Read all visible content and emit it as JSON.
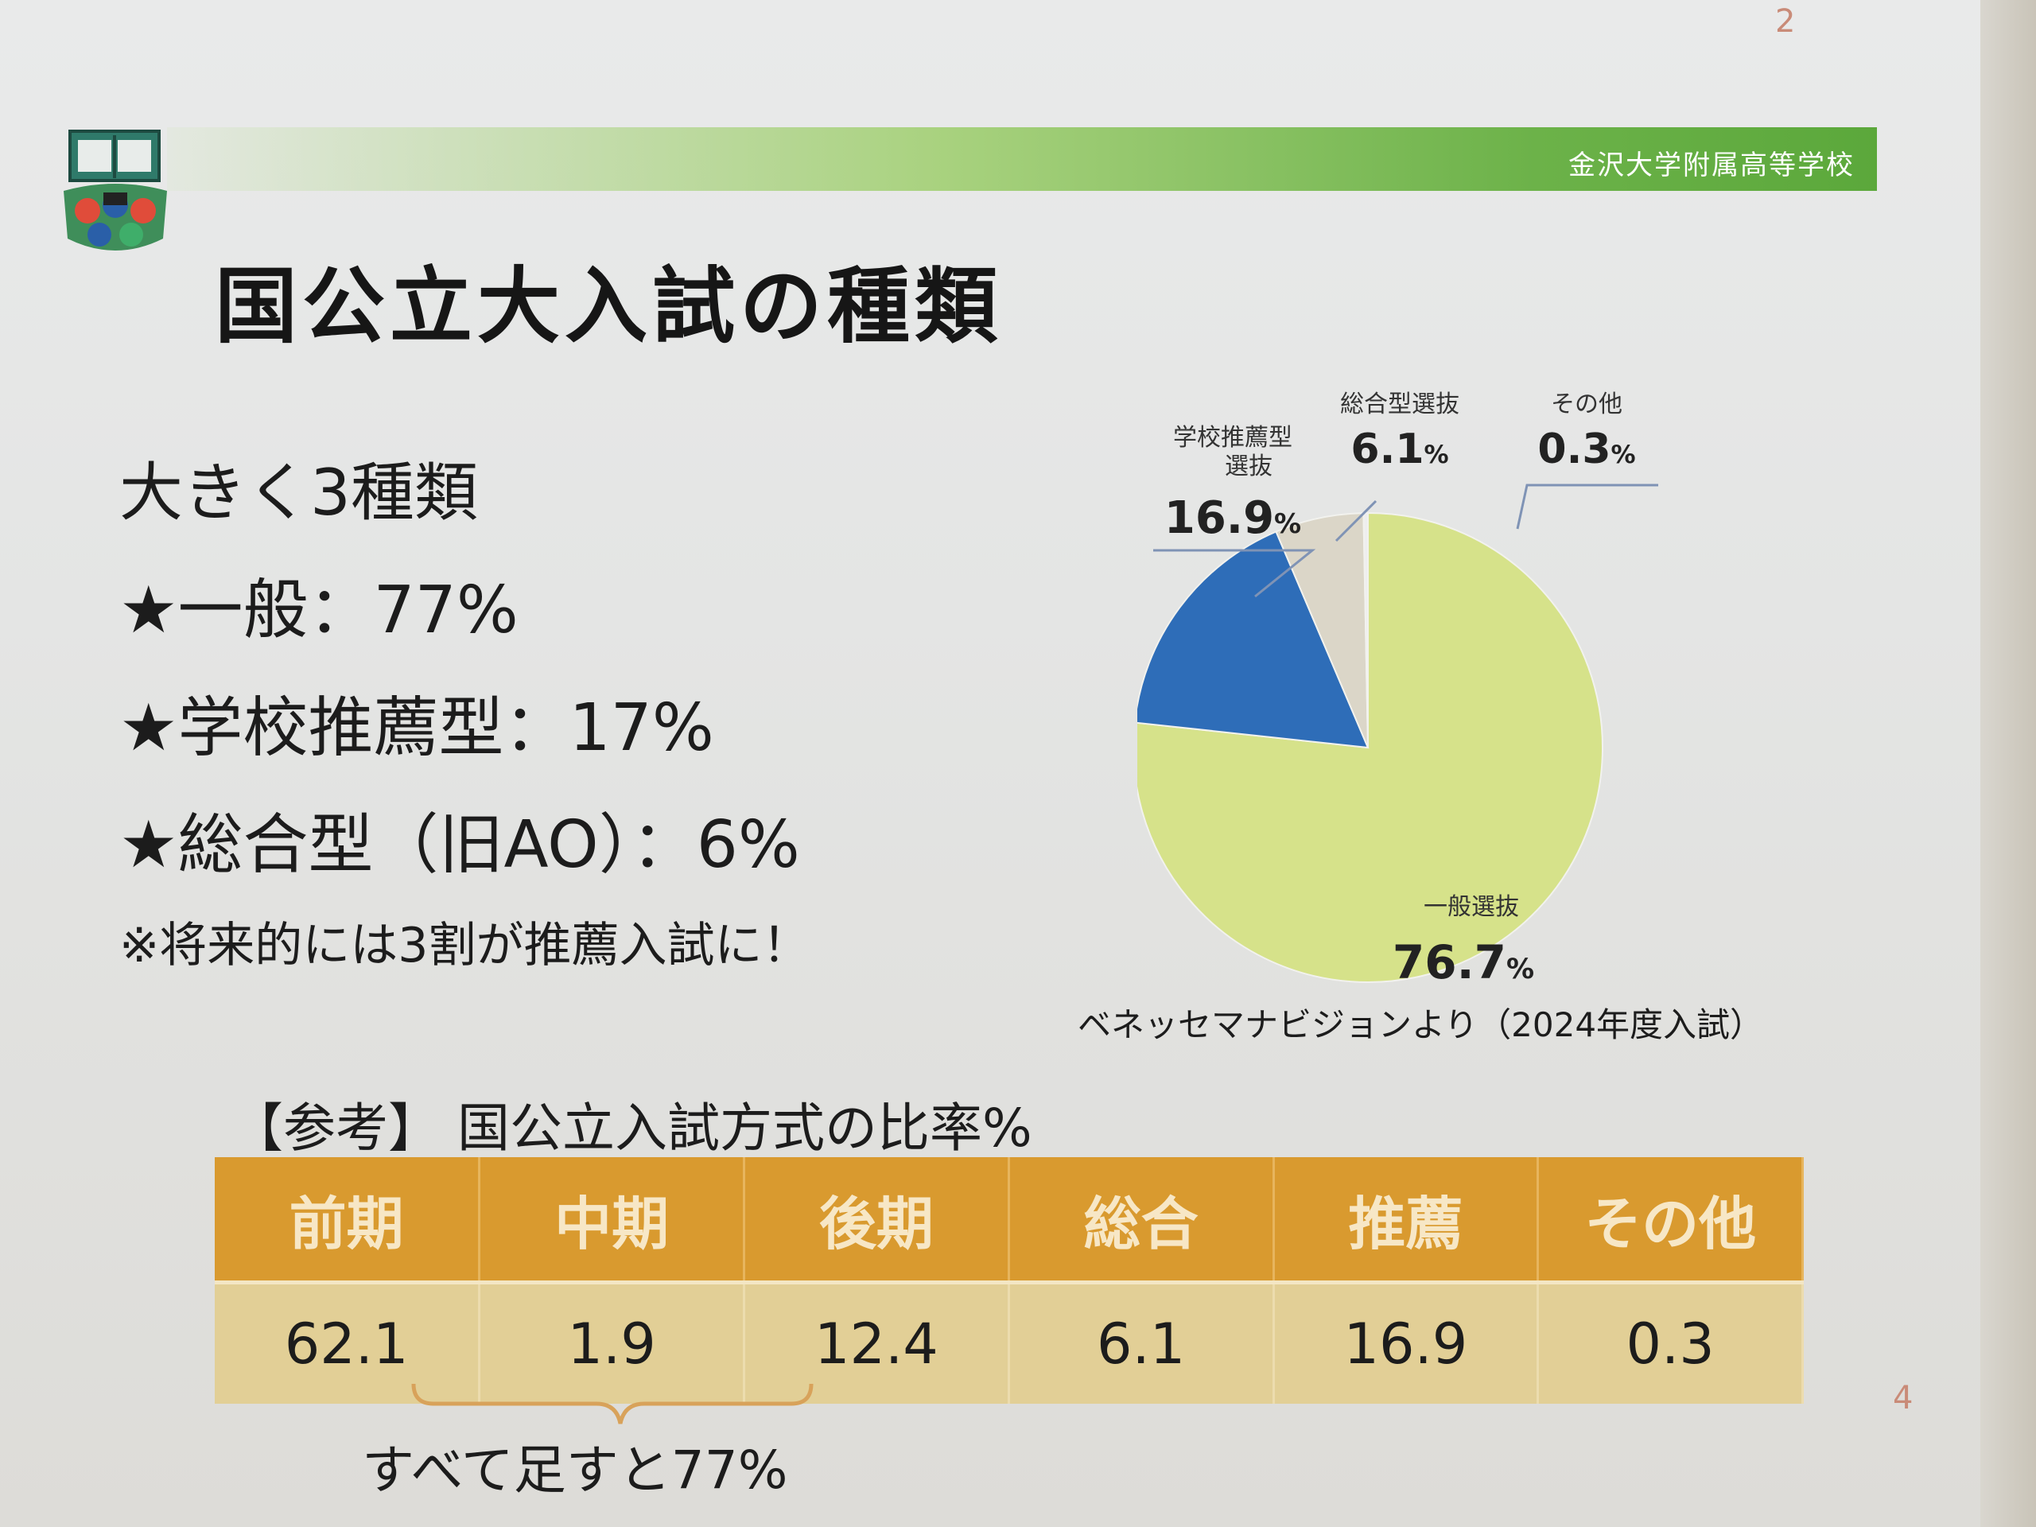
{
  "page": {
    "page_number_top": "2",
    "page_number_bottom": "4",
    "school_name": "金沢大学附属高等学校",
    "title": "国公立大入試の種類"
  },
  "bullets": {
    "intro": "大きく3種類",
    "general": "★一般：77%",
    "school_recommend": "★学校推薦型：17%",
    "comprehensive": "★総合型（旧AO）：6%",
    "note": "※将来的には3割が推薦入試に！"
  },
  "source_note": "ベネッセマナビジョンより（2024年度入試）",
  "reference": {
    "title": "【参考】 国公立入試方式の比率%",
    "headers": [
      "前期",
      "中期",
      "後期",
      "総合",
      "推薦",
      "その他"
    ],
    "values": [
      "62.1",
      "1.9",
      "12.4",
      "6.1",
      "16.9",
      "0.3"
    ],
    "sum_note": "すべて足すと77%"
  },
  "chart_data": {
    "type": "pie",
    "slices": [
      {
        "label": "一般選抜",
        "value": 76.7,
        "value_text": "76.7",
        "unit": "%",
        "color": "#d6e28a"
      },
      {
        "label": "学校推薦型選抜",
        "label_lines": [
          "学校推薦型",
          "選抜"
        ],
        "value": 16.9,
        "value_text": "16.9",
        "unit": "%",
        "color": "#2e6db8"
      },
      {
        "label": "総合型選抜",
        "value": 6.1,
        "value_text": "6.1",
        "unit": "%",
        "color": "#dbd6c8"
      },
      {
        "label": "その他",
        "value": 0.3,
        "value_text": "0.3",
        "unit": "%",
        "color": "#eeeeee"
      }
    ],
    "start": "12 o'clock",
    "direction": "clockwise"
  },
  "colors": {
    "header_green": "#5ba83b",
    "table_header": "#d99a2f",
    "table_body": "#e2cf96",
    "bracket": "#d8a25a"
  }
}
